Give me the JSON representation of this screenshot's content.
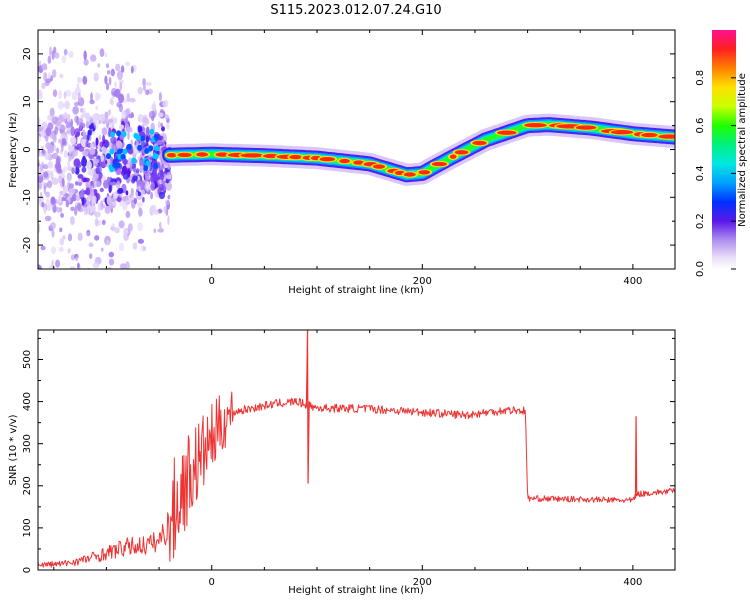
{
  "title": "S115.2023.012.07.24.G10",
  "chart_data": [
    {
      "type": "heatmap",
      "xlabel": "Height of straight line (km)",
      "ylabel": "Frequency (Hz)",
      "xlim": [
        -165,
        440
      ],
      "ylim": [
        -25,
        25
      ],
      "x_ticks": [
        0,
        200,
        400
      ],
      "y_ticks": [
        -20,
        -10,
        0,
        10,
        20
      ],
      "colorbar": {
        "label": "Normalized spectral amplitude",
        "range": [
          0,
          1
        ],
        "ticks": [
          0.0,
          0.2,
          0.4,
          0.6,
          0.8
        ],
        "tick_labels": [
          "0.0",
          "0.2",
          "0.4",
          "0.6",
          "0.8"
        ]
      },
      "ridge": [
        {
          "x": -40,
          "y": -1.2
        },
        {
          "x": 0,
          "y": -1.0
        },
        {
          "x": 50,
          "y": -1.3
        },
        {
          "x": 100,
          "y": -1.8
        },
        {
          "x": 150,
          "y": -3.0
        },
        {
          "x": 185,
          "y": -5.3
        },
        {
          "x": 200,
          "y": -5.0
        },
        {
          "x": 225,
          "y": -2.0
        },
        {
          "x": 260,
          "y": 2.0
        },
        {
          "x": 300,
          "y": 5.0
        },
        {
          "x": 320,
          "y": 5.2
        },
        {
          "x": 360,
          "y": 4.5
        },
        {
          "x": 400,
          "y": 3.3
        },
        {
          "x": 440,
          "y": 2.6
        }
      ],
      "noisy_region": {
        "x_from": -165,
        "x_to": -40,
        "freq_spread": 20
      }
    },
    {
      "type": "line",
      "xlabel": "Height of straight line (km)",
      "ylabel": "SNR (10 * v/v)",
      "xlim": [
        -165,
        440
      ],
      "ylim": [
        0,
        570
      ],
      "x_ticks": [
        0,
        200,
        400
      ],
      "y_ticks": [
        0,
        100,
        200,
        300,
        400,
        500
      ],
      "color": "#ee3333",
      "series": [
        {
          "values": [
            {
              "x": -165,
              "y": 12
            },
            {
              "x": -140,
              "y": 15
            },
            {
              "x": -120,
              "y": 25
            },
            {
              "x": -100,
              "y": 40
            },
            {
              "x": -80,
              "y": 55
            },
            {
              "x": -60,
              "y": 60
            },
            {
              "x": -50,
              "y": 70
            },
            {
              "x": -40,
              "y": 110
            },
            {
              "x": -30,
              "y": 180
            },
            {
              "x": -20,
              "y": 230
            },
            {
              "x": -10,
              "y": 270
            },
            {
              "x": 0,
              "y": 310
            },
            {
              "x": 10,
              "y": 350
            },
            {
              "x": 20,
              "y": 375
            },
            {
              "x": 40,
              "y": 385
            },
            {
              "x": 60,
              "y": 395
            },
            {
              "x": 80,
              "y": 400
            },
            {
              "x": 100,
              "y": 385
            },
            {
              "x": 150,
              "y": 383
            },
            {
              "x": 200,
              "y": 375
            },
            {
              "x": 240,
              "y": 368
            },
            {
              "x": 280,
              "y": 380
            },
            {
              "x": 298,
              "y": 378
            },
            {
              "x": 300,
              "y": 170
            },
            {
              "x": 350,
              "y": 168
            },
            {
              "x": 400,
              "y": 165
            },
            {
              "x": 403,
              "y": 180
            },
            {
              "x": 440,
              "y": 188
            }
          ]
        }
      ],
      "spikes": [
        {
          "x": 91,
          "y": 570
        },
        {
          "x": 91,
          "y": 205
        },
        {
          "x": 403,
          "y": 365
        }
      ]
    }
  ]
}
